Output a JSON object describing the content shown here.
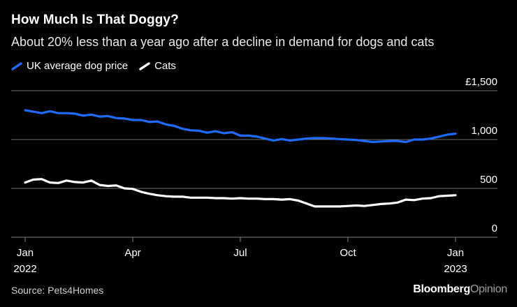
{
  "colors": {
    "background": "#000000",
    "dog_series": "#1f6bff",
    "cat_series": "#ffffff",
    "axis": "#7f7f7f",
    "gridline": "#6e6e6e"
  },
  "header": {
    "title": "How Much Is That Doggy?",
    "subtitle": "About 20% less than a year ago after a decline in demand for dogs and cats"
  },
  "footer": {
    "source": "Source: Pets4Homes",
    "brand_first": "Bloomberg",
    "brand_second": "Opinion"
  },
  "chart_data": {
    "type": "line",
    "title": "How Much Is That Doggy?",
    "xlabel": "",
    "ylabel": "",
    "ylim": [
      0,
      1500
    ],
    "yticks": [
      0,
      500,
      1000,
      1500
    ],
    "ytick_labels": [
      "0",
      "500",
      "1,000",
      "£1,500"
    ],
    "xlim": [
      0,
      56
    ],
    "grid": true,
    "legend": "top-left",
    "x_ticks": [
      {
        "x": 0,
        "label": "Jan",
        "year": "2022"
      },
      {
        "x": 13,
        "label": "Apr",
        "year": ""
      },
      {
        "x": 26,
        "label": "Jul",
        "year": ""
      },
      {
        "x": 39,
        "label": "Oct",
        "year": ""
      },
      {
        "x": 52,
        "label": "Jan",
        "year": "2023"
      }
    ],
    "x": [
      0,
      1,
      2,
      3,
      4,
      5,
      6,
      7,
      8,
      9,
      10,
      11,
      12,
      13,
      14,
      15,
      16,
      17,
      18,
      19,
      20,
      21,
      22,
      23,
      24,
      25,
      26,
      27,
      28,
      29,
      30,
      31,
      32,
      33,
      34,
      35,
      36,
      37,
      38,
      39,
      40,
      41,
      42,
      43,
      44,
      45,
      46,
      47,
      48,
      49,
      50,
      51,
      52
    ],
    "series": [
      {
        "name": "UK average dog price",
        "color": "#1f6bff",
        "values": [
          1300,
          1285,
          1270,
          1290,
          1270,
          1270,
          1265,
          1245,
          1255,
          1235,
          1240,
          1220,
          1215,
          1200,
          1200,
          1180,
          1185,
          1155,
          1140,
          1110,
          1095,
          1090,
          1070,
          1085,
          1065,
          1075,
          1040,
          1040,
          1030,
          1010,
          990,
          1005,
          990,
          1000,
          1010,
          1015,
          1015,
          1010,
          1005,
          1000,
          995,
          985,
          975,
          980,
          985,
          985,
          975,
          1000,
          1000,
          1010,
          1030,
          1050,
          1060
        ]
      },
      {
        "name": "Cats",
        "color": "#ffffff",
        "values": [
          560,
          590,
          595,
          560,
          555,
          580,
          565,
          560,
          580,
          535,
          525,
          530,
          500,
          495,
          465,
          445,
          430,
          420,
          415,
          415,
          405,
          405,
          405,
          400,
          400,
          395,
          400,
          395,
          395,
          390,
          390,
          385,
          390,
          375,
          345,
          315,
          315,
          315,
          315,
          320,
          325,
          320,
          330,
          340,
          345,
          355,
          385,
          380,
          395,
          400,
          420,
          425,
          430
        ]
      }
    ]
  }
}
